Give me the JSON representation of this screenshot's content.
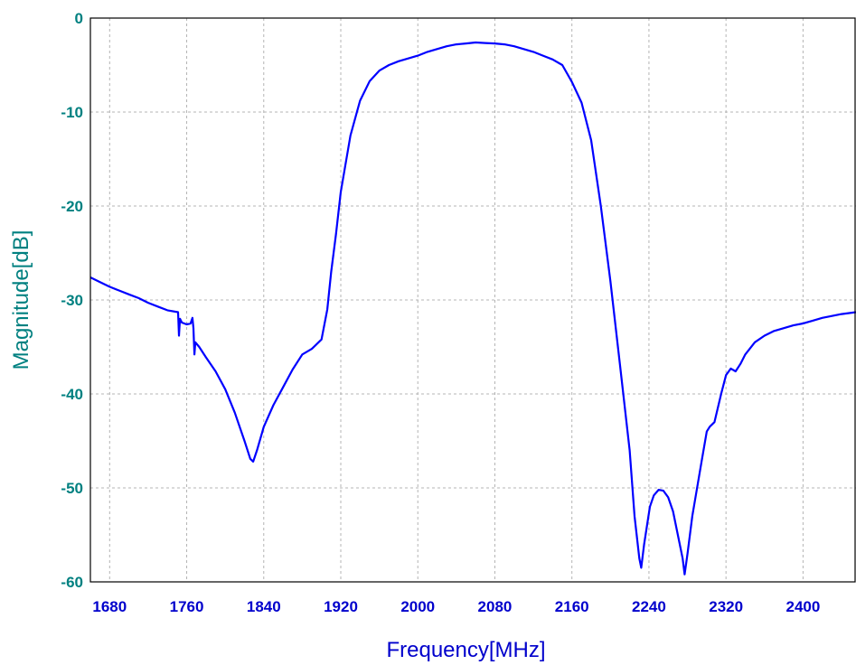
{
  "chart_data": {
    "type": "line",
    "title": "",
    "xlabel": "Frequency[MHz]",
    "ylabel": "Magnitude[dB]",
    "xlim": [
      1660,
      2455
    ],
    "ylim": [
      -60,
      0
    ],
    "x_ticks": [
      1680,
      1760,
      1840,
      1920,
      2000,
      2080,
      2160,
      2240,
      2320,
      2400
    ],
    "x_tick_labels": [
      "1680",
      "1760",
      "1840",
      "1920",
      "2000",
      "2080",
      "2160",
      "2240",
      "2320",
      "2400"
    ],
    "y_ticks": [
      0,
      -10,
      -20,
      -30,
      -40,
      -50,
      -60
    ],
    "y_tick_labels": [
      "0",
      "-10",
      "-20",
      "-30",
      "-40",
      "-50",
      "-60"
    ],
    "grid": true,
    "legend": "none",
    "colors": {
      "line": "#0000ff",
      "tick_y": "#008080",
      "tick_x": "#0000cc",
      "xlabel": "#0000cc",
      "ylabel": "#008080",
      "grid": "#b4b4b4",
      "frame": "#000000"
    },
    "series": [
      {
        "points": [
          [
            1660,
            -27.6
          ],
          [
            1670,
            -28.1
          ],
          [
            1680,
            -28.6
          ],
          [
            1690,
            -29.0
          ],
          [
            1700,
            -29.4
          ],
          [
            1710,
            -29.8
          ],
          [
            1720,
            -30.3
          ],
          [
            1730,
            -30.7
          ],
          [
            1740,
            -31.1
          ],
          [
            1751,
            -31.3
          ],
          [
            1752,
            -33.8
          ],
          [
            1753,
            -32.0
          ],
          [
            1755,
            -32.4
          ],
          [
            1760,
            -32.6
          ],
          [
            1764,
            -32.5
          ],
          [
            1766,
            -31.9
          ],
          [
            1767,
            -33.0
          ],
          [
            1768,
            -35.8
          ],
          [
            1769,
            -34.5
          ],
          [
            1773,
            -35.0
          ],
          [
            1780,
            -36.1
          ],
          [
            1790,
            -37.6
          ],
          [
            1800,
            -39.5
          ],
          [
            1810,
            -42.0
          ],
          [
            1820,
            -45.0
          ],
          [
            1826,
            -46.9
          ],
          [
            1829,
            -47.2
          ],
          [
            1833,
            -46.0
          ],
          [
            1840,
            -43.5
          ],
          [
            1850,
            -41.2
          ],
          [
            1860,
            -39.3
          ],
          [
            1870,
            -37.4
          ],
          [
            1880,
            -35.8
          ],
          [
            1890,
            -35.2
          ],
          [
            1900,
            -34.2
          ],
          [
            1906,
            -31.0
          ],
          [
            1910,
            -27.0
          ],
          [
            1915,
            -23.0
          ],
          [
            1920,
            -18.5
          ],
          [
            1930,
            -12.5
          ],
          [
            1940,
            -8.8
          ],
          [
            1950,
            -6.7
          ],
          [
            1960,
            -5.6
          ],
          [
            1970,
            -5.0
          ],
          [
            1980,
            -4.6
          ],
          [
            1990,
            -4.3
          ],
          [
            2000,
            -4.0
          ],
          [
            2010,
            -3.6
          ],
          [
            2020,
            -3.3
          ],
          [
            2030,
            -3.0
          ],
          [
            2040,
            -2.8
          ],
          [
            2050,
            -2.7
          ],
          [
            2060,
            -2.6
          ],
          [
            2070,
            -2.65
          ],
          [
            2080,
            -2.7
          ],
          [
            2090,
            -2.8
          ],
          [
            2100,
            -3.0
          ],
          [
            2110,
            -3.3
          ],
          [
            2120,
            -3.6
          ],
          [
            2130,
            -4.0
          ],
          [
            2140,
            -4.4
          ],
          [
            2150,
            -5.0
          ],
          [
            2160,
            -6.8
          ],
          [
            2170,
            -9.0
          ],
          [
            2180,
            -13.0
          ],
          [
            2190,
            -20.0
          ],
          [
            2200,
            -28.0
          ],
          [
            2210,
            -37.0
          ],
          [
            2220,
            -46.0
          ],
          [
            2225,
            -53.0
          ],
          [
            2230,
            -57.5
          ],
          [
            2232,
            -58.5
          ],
          [
            2235,
            -56.0
          ],
          [
            2238,
            -54.0
          ],
          [
            2241,
            -52.0
          ],
          [
            2245,
            -50.8
          ],
          [
            2250,
            -50.2
          ],
          [
            2255,
            -50.3
          ],
          [
            2260,
            -51.0
          ],
          [
            2265,
            -52.5
          ],
          [
            2270,
            -55.0
          ],
          [
            2275,
            -57.5
          ],
          [
            2277,
            -59.2
          ],
          [
            2280,
            -57.0
          ],
          [
            2285,
            -53.0
          ],
          [
            2290,
            -50.0
          ],
          [
            2295,
            -47.0
          ],
          [
            2300,
            -44.0
          ],
          [
            2303,
            -43.5
          ],
          [
            2308,
            -43.0
          ],
          [
            2315,
            -40.0
          ],
          [
            2320,
            -38.0
          ],
          [
            2325,
            -37.3
          ],
          [
            2330,
            -37.6
          ],
          [
            2335,
            -36.8
          ],
          [
            2340,
            -35.8
          ],
          [
            2350,
            -34.5
          ],
          [
            2360,
            -33.8
          ],
          [
            2370,
            -33.3
          ],
          [
            2380,
            -33.0
          ],
          [
            2390,
            -32.7
          ],
          [
            2400,
            -32.5
          ],
          [
            2410,
            -32.2
          ],
          [
            2420,
            -31.9
          ],
          [
            2430,
            -31.7
          ],
          [
            2440,
            -31.5
          ],
          [
            2455,
            -31.3
          ]
        ]
      }
    ]
  }
}
